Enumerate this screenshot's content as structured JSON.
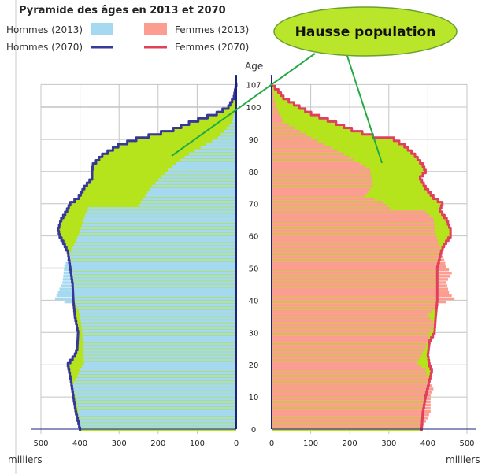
{
  "chart_data": {
    "type": "bar",
    "title": "Pyramide des âges en 2013 et 2070",
    "ylabel": "Age",
    "xlabel": "milliers",
    "orientation": "horizontal population pyramid",
    "age_range": [
      0,
      107
    ],
    "x_range": [
      0,
      500
    ],
    "x_ticks": [
      "500",
      "400",
      "300",
      "200",
      "100",
      "0"
    ],
    "x_ticks_right": [
      "0",
      "100",
      "200",
      "300",
      "400",
      "500"
    ],
    "age_ticks": [
      "0",
      "10",
      "20",
      "30",
      "40",
      "50",
      "60",
      "70",
      "80",
      "90",
      "100",
      "107"
    ],
    "grid": true,
    "legend_placement": "top",
    "series": [
      {
        "name": "Hommes (2013)",
        "kind": "bars",
        "side": "left",
        "color": "#a5d9f0",
        "points": [
          [
            0,
            400
          ],
          [
            5,
            405
          ],
          [
            10,
            412
          ],
          [
            13,
            422
          ],
          [
            15,
            410
          ],
          [
            18,
            400
          ],
          [
            20,
            390
          ],
          [
            25,
            392
          ],
          [
            30,
            395
          ],
          [
            35,
            400
          ],
          [
            38,
            410
          ],
          [
            39,
            440
          ],
          [
            40,
            464
          ],
          [
            45,
            445
          ],
          [
            50,
            440
          ],
          [
            55,
            423
          ],
          [
            60,
            403
          ],
          [
            65,
            390
          ],
          [
            68,
            380
          ],
          [
            69,
            250
          ],
          [
            70,
            245
          ],
          [
            75,
            215
          ],
          [
            80,
            175
          ],
          [
            85,
            121
          ],
          [
            90,
            47
          ],
          [
            95,
            10
          ],
          [
            100,
            2
          ],
          [
            107,
            0
          ]
        ]
      },
      {
        "name": "Femmes (2013)",
        "kind": "bars",
        "side": "right",
        "color": "#fb9d91",
        "points": [
          [
            0,
            387
          ],
          [
            5,
            407
          ],
          [
            10,
            407
          ],
          [
            12,
            414
          ],
          [
            15,
            400
          ],
          [
            18,
            394
          ],
          [
            20,
            373
          ],
          [
            25,
            394
          ],
          [
            30,
            407
          ],
          [
            32,
            420
          ],
          [
            35,
            400
          ],
          [
            38,
            427
          ],
          [
            40,
            468
          ],
          [
            42,
            454
          ],
          [
            45,
            447
          ],
          [
            48,
            461
          ],
          [
            50,
            447
          ],
          [
            55,
            434
          ],
          [
            60,
            420
          ],
          [
            65,
            414
          ],
          [
            67,
            394
          ],
          [
            68,
            303
          ],
          [
            70,
            286
          ],
          [
            72,
            239
          ],
          [
            75,
            259
          ],
          [
            80,
            252
          ],
          [
            85,
            185
          ],
          [
            90,
            101
          ],
          [
            95,
            30
          ],
          [
            100,
            10
          ],
          [
            107,
            0
          ]
        ]
      },
      {
        "name": "Hommes (2070)",
        "kind": "line",
        "side": "left",
        "color": "#383896",
        "points": [
          [
            0,
            400
          ],
          [
            5,
            410
          ],
          [
            10,
            417
          ],
          [
            15,
            423
          ],
          [
            20,
            431
          ],
          [
            23,
            413
          ],
          [
            25,
            407
          ],
          [
            30,
            405
          ],
          [
            35,
            413
          ],
          [
            40,
            417
          ],
          [
            45,
            419
          ],
          [
            50,
            425
          ],
          [
            55,
            431
          ],
          [
            58,
            443
          ],
          [
            60,
            452
          ],
          [
            62,
            456
          ],
          [
            65,
            448
          ],
          [
            68,
            433
          ],
          [
            70,
            425
          ],
          [
            72,
            403
          ],
          [
            75,
            389
          ],
          [
            78,
            369
          ],
          [
            80,
            369
          ],
          [
            82,
            367
          ],
          [
            85,
            343
          ],
          [
            88,
            302
          ],
          [
            90,
            256
          ],
          [
            93,
            161
          ],
          [
            95,
            121
          ],
          [
            98,
            50
          ],
          [
            100,
            20
          ],
          [
            103,
            6
          ],
          [
            107,
            0
          ]
        ]
      },
      {
        "name": "Femmes (2070)",
        "kind": "line",
        "side": "right",
        "color": "#e0405c",
        "points": [
          [
            0,
            384
          ],
          [
            5,
            387
          ],
          [
            10,
            394
          ],
          [
            15,
            404
          ],
          [
            18,
            410
          ],
          [
            20,
            404
          ],
          [
            23,
            400
          ],
          [
            27,
            404
          ],
          [
            30,
            417
          ],
          [
            35,
            420
          ],
          [
            40,
            424
          ],
          [
            45,
            424
          ],
          [
            50,
            424
          ],
          [
            55,
            434
          ],
          [
            57,
            441
          ],
          [
            60,
            458
          ],
          [
            62,
            458
          ],
          [
            65,
            448
          ],
          [
            68,
            431
          ],
          [
            70,
            437
          ],
          [
            72,
            414
          ],
          [
            75,
            394
          ],
          [
            78,
            380
          ],
          [
            80,
            394
          ],
          [
            82,
            387
          ],
          [
            85,
            367
          ],
          [
            88,
            340
          ],
          [
            90,
            313
          ],
          [
            91,
            259
          ],
          [
            93,
            205
          ],
          [
            95,
            165
          ],
          [
            98,
            101
          ],
          [
            100,
            71
          ],
          [
            103,
            30
          ],
          [
            105,
            17
          ],
          [
            107,
            0
          ]
        ]
      }
    ],
    "increase_fill_color": "#b5e31c",
    "annotation": "Hausse population"
  },
  "axis_unit_left": "milliers",
  "axis_unit_right": "milliers"
}
